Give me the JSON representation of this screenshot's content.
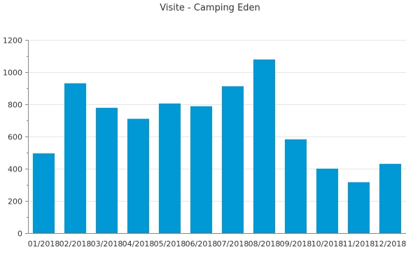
{
  "chart_data": {
    "type": "bar",
    "title": "Visite - Camping Eden",
    "xlabel": "",
    "ylabel": "",
    "categories": [
      "01/2018",
      "02/2018",
      "03/2018",
      "04/2018",
      "05/2018",
      "06/2018",
      "07/2018",
      "08/2018",
      "09/2018",
      "10/2018",
      "11/2018",
      "12/2018"
    ],
    "values": [
      495,
      930,
      778,
      710,
      805,
      788,
      912,
      1078,
      582,
      400,
      316,
      430
    ],
    "ylim": [
      0,
      1200
    ],
    "yticks": [
      "0",
      "200",
      "400",
      "600",
      "800",
      "1000",
      "1200"
    ],
    "grid": true,
    "legend": "none",
    "colors": {
      "bar": "#0099d6",
      "grid": "#e6e6e6",
      "axis": "#888888",
      "text": "#333333"
    }
  }
}
